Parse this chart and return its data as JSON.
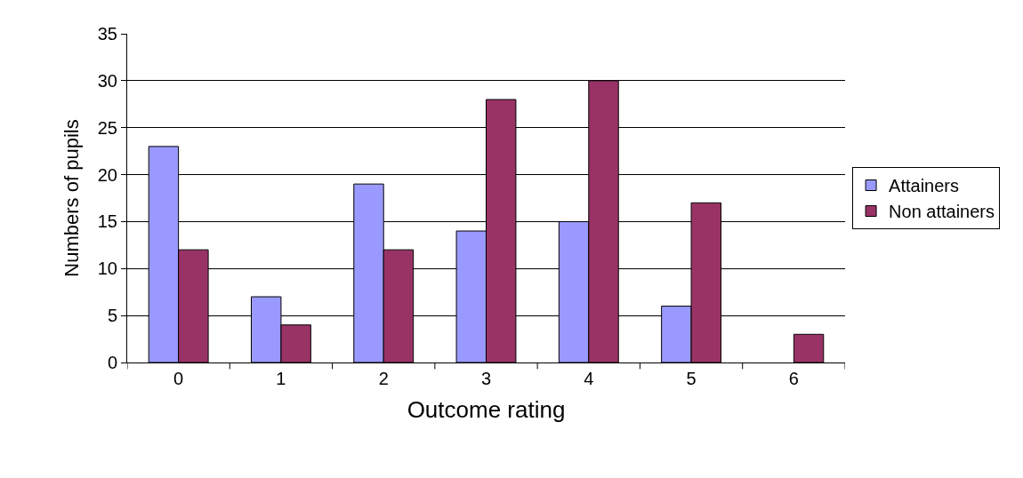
{
  "chart_data": {
    "type": "bar",
    "xlabel": "Outcome rating",
    "ylabel": "Numbers of pupils",
    "categories": [
      "0",
      "1",
      "2",
      "3",
      "4",
      "5",
      "6"
    ],
    "series": [
      {
        "name": "Attainers",
        "color": "#9999ff",
        "values": [
          23,
          7,
          19,
          14,
          15,
          6,
          null
        ]
      },
      {
        "name": "Non attainers",
        "color": "#993366",
        "values": [
          12,
          4,
          12,
          28,
          30,
          17,
          3
        ]
      }
    ],
    "ylim": [
      0,
      35
    ],
    "yticks": [
      0,
      5,
      10,
      15,
      20,
      25,
      30,
      35
    ],
    "grid": "y",
    "legend": "right"
  }
}
